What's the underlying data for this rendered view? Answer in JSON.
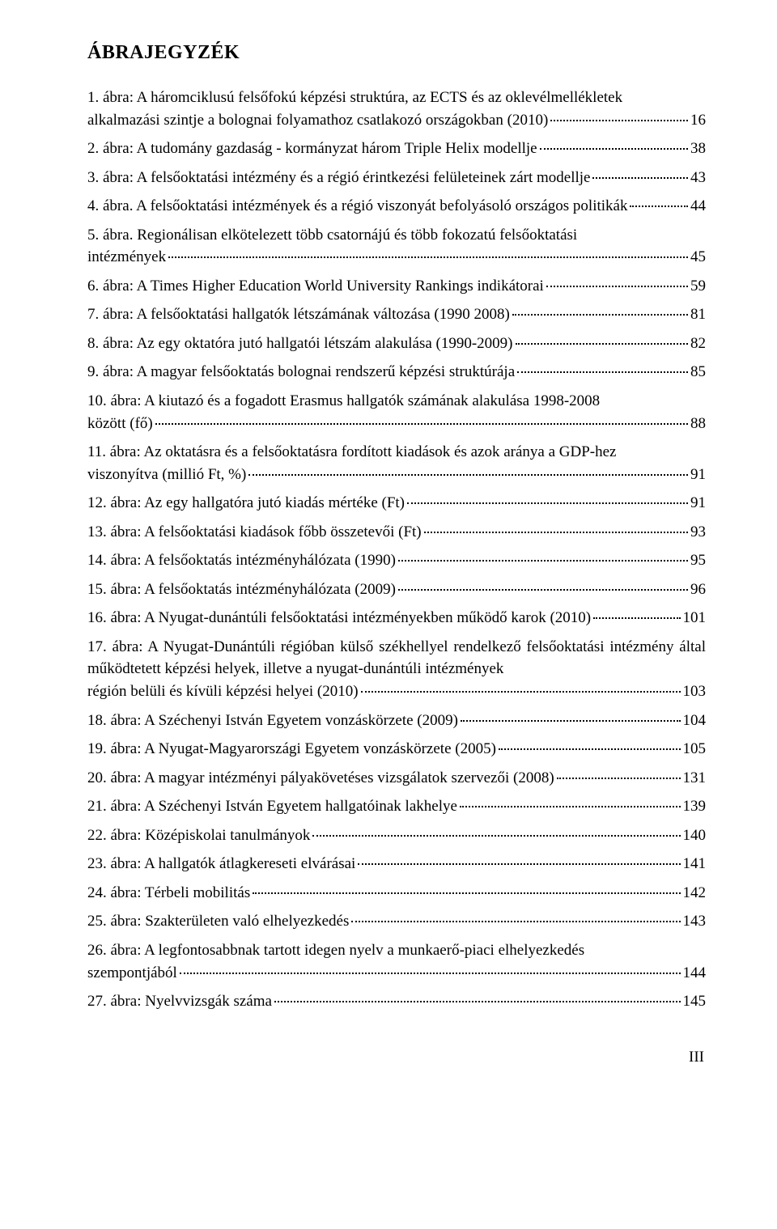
{
  "heading": "ÁBRAJEGYZÉK",
  "page_number": "III",
  "entries": [
    {
      "pre": "1. ábra: A háromciklusú felsőfokú képzési struktúra, az ECTS és az oklevélmellékletek",
      "lead": "alkalmazási szintje a bolognai folyamathoz csatlakozó országokban (2010)",
      "page": "16"
    },
    {
      "pre": "",
      "lead": "2. ábra: A tudomány gazdaság - kormányzat három Triple Helix modellje",
      "page": "38"
    },
    {
      "pre": "",
      "lead": "3. ábra: A felsőoktatási intézmény és a régió érintkezési felületeinek zárt modellje",
      "page": "43"
    },
    {
      "pre": "",
      "lead": "4. ábra. A felsőoktatási intézmények és a régió viszonyát befolyásoló országos politikák",
      "page": "44"
    },
    {
      "pre": "5. ábra. Regionálisan elkötelezett több csatornájú és több fokozatú felsőoktatási",
      "lead": "intézmények",
      "page": "45"
    },
    {
      "pre": "",
      "lead": "6. ábra: A Times Higher Education World University Rankings indikátorai",
      "page": "59"
    },
    {
      "pre": "",
      "lead": "7. ábra: A felsőoktatási hallgatók létszámának változása (1990 2008)",
      "page": "81"
    },
    {
      "pre": "",
      "lead": "8. ábra: Az egy oktatóra jutó hallgatói létszám alakulása (1990-2009)",
      "page": "82"
    },
    {
      "pre": "",
      "lead": "9. ábra: A magyar felsőoktatás bolognai rendszerű képzési struktúrája",
      "page": "85"
    },
    {
      "pre": "10. ábra: A kiutazó és a fogadott Erasmus hallgatók számának alakulása 1998-2008",
      "lead": "között (fő)",
      "page": "88"
    },
    {
      "pre": "11. ábra: Az oktatásra és a felsőoktatásra fordított kiadások és azok aránya a GDP-hez",
      "lead": "viszonyítva (millió Ft, %)",
      "page": "91"
    },
    {
      "pre": "",
      "lead": "12. ábra: Az egy hallgatóra jutó kiadás mértéke (Ft)",
      "page": "91"
    },
    {
      "pre": "",
      "lead": "13. ábra: A felsőoktatási kiadások főbb összetevői (Ft)",
      "page": "93"
    },
    {
      "pre": "",
      "lead": "14. ábra: A felsőoktatás intézményhálózata (1990)",
      "page": "95"
    },
    {
      "pre": "",
      "lead": "15. ábra: A felsőoktatás intézményhálózata (2009)",
      "page": "96"
    },
    {
      "pre": "",
      "lead": "16. ábra: A Nyugat-dunántúli felsőoktatási intézményekben működő karok (2010)",
      "page": "101"
    },
    {
      "pre": "17. ábra: A Nyugat-Dunántúli régióban külső székhellyel rendelkező felsőoktatási intézmény által működtetett képzési helyek, illetve a nyugat-dunántúli intézmények",
      "lead": "régión belüli és kívüli képzési helyei (2010)",
      "page": "103"
    },
    {
      "pre": "",
      "lead": "18. ábra: A Széchenyi István Egyetem vonzáskörzete (2009)",
      "page": "104"
    },
    {
      "pre": "",
      "lead": "19. ábra: A Nyugat-Magyarországi Egyetem vonzáskörzete (2005)",
      "page": "105"
    },
    {
      "pre": "",
      "lead": "20. ábra: A magyar intézményi pályakövetéses vizsgálatok szervezői (2008)",
      "page": "131"
    },
    {
      "pre": "",
      "lead": "21. ábra: A Széchenyi István Egyetem hallgatóinak lakhelye",
      "page": "139"
    },
    {
      "pre": "",
      "lead": "22. ábra: Középiskolai tanulmányok",
      "page": "140"
    },
    {
      "pre": "",
      "lead": "23. ábra: A hallgatók átlagkereseti elvárásai",
      "page": "141"
    },
    {
      "pre": "",
      "lead": "24. ábra: Térbeli mobilitás",
      "page": "142"
    },
    {
      "pre": "",
      "lead": "25. ábra: Szakterületen való elhelyezkedés",
      "page": "143"
    },
    {
      "pre": "26. ábra: A legfontosabbnak tartott idegen nyelv a munkaerő-piaci elhelyezkedés",
      "lead": "szempontjából",
      "page": "144"
    },
    {
      "pre": "",
      "lead": "27. ábra: Nyelvvizsgák száma",
      "page": "145"
    }
  ]
}
